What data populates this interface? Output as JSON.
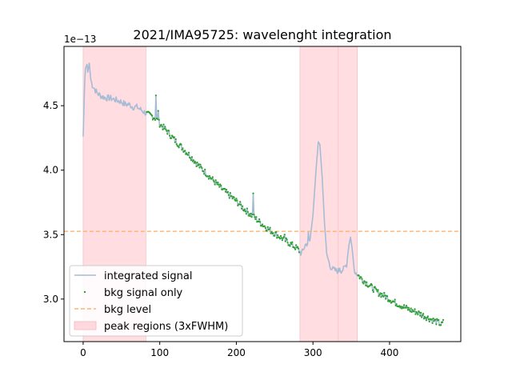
{
  "chart_data": {
    "type": "line",
    "title": "2021/IMA95725: wavelenght integration",
    "xlabel": "",
    "ylabel": "",
    "y_offset_label": "1e−13",
    "xlim": [
      -25,
      493
    ],
    "ylim": [
      2.67,
      4.96
    ],
    "y_scale_note": "y values are in units of 1e-13",
    "x_ticks": [
      0,
      100,
      200,
      300,
      400
    ],
    "x_tick_labels": [
      "0",
      "100",
      "200",
      "300",
      "400"
    ],
    "y_ticks": [
      3.0,
      3.5,
      4.0,
      4.5
    ],
    "y_tick_labels": [
      "3.0",
      "3.5",
      "4.0",
      "4.5"
    ],
    "grid": false,
    "legend_position": "lower-left",
    "legend": [
      {
        "label": "integrated signal",
        "kind": "line"
      },
      {
        "label": "bkg signal only",
        "kind": "marker"
      },
      {
        "label": "bkg level",
        "kind": "dashed-line"
      },
      {
        "label": "peak regions (3xFWHM)",
        "kind": "patch"
      }
    ],
    "colors": {
      "signal": "#a6bcd6",
      "bkg_points": "#2ca02c",
      "bkg_level": "#ffb26e",
      "peak_fill": "#ffd9dd",
      "peak_edge": "#f4b8be"
    },
    "bkg_level": 3.525,
    "peak_regions": [
      [
        0,
        82
      ],
      [
        283,
        333
      ],
      [
        333,
        358
      ]
    ],
    "signal_anchors": [
      [
        0,
        4.26
      ],
      [
        2,
        4.68
      ],
      [
        3,
        4.79
      ],
      [
        5,
        4.82
      ],
      [
        6,
        4.76
      ],
      [
        8,
        4.83
      ],
      [
        10,
        4.7
      ],
      [
        12,
        4.66
      ],
      [
        14,
        4.64
      ],
      [
        16,
        4.62
      ],
      [
        18,
        4.6
      ],
      [
        20,
        4.59
      ],
      [
        25,
        4.57
      ],
      [
        30,
        4.56
      ],
      [
        35,
        4.56
      ],
      [
        40,
        4.55
      ],
      [
        45,
        4.54
      ],
      [
        50,
        4.53
      ],
      [
        55,
        4.51
      ],
      [
        60,
        4.51
      ],
      [
        65,
        4.49
      ],
      [
        70,
        4.49
      ],
      [
        75,
        4.47
      ],
      [
        80,
        4.45
      ],
      [
        85,
        4.43
      ],
      [
        90,
        4.42
      ],
      [
        95,
        4.4
      ],
      [
        100,
        4.36
      ],
      [
        110,
        4.3
      ],
      [
        120,
        4.23
      ],
      [
        130,
        4.17
      ],
      [
        140,
        4.11
      ],
      [
        150,
        4.04
      ],
      [
        160,
        3.98
      ],
      [
        170,
        3.92
      ],
      [
        180,
        3.86
      ],
      [
        190,
        3.81
      ],
      [
        200,
        3.76
      ],
      [
        210,
        3.7
      ],
      [
        220,
        3.65
      ],
      [
        230,
        3.6
      ],
      [
        240,
        3.55
      ],
      [
        250,
        3.51
      ],
      [
        260,
        3.47
      ],
      [
        270,
        3.43
      ],
      [
        280,
        3.39
      ],
      [
        285,
        3.35
      ],
      [
        290,
        3.42
      ],
      [
        296,
        3.45
      ],
      [
        300,
        3.65
      ],
      [
        304,
        4.0
      ],
      [
        307,
        4.22
      ],
      [
        309,
        4.2
      ],
      [
        312,
        3.95
      ],
      [
        315,
        3.6
      ],
      [
        318,
        3.35
      ],
      [
        322,
        3.26
      ],
      [
        326,
        3.23
      ],
      [
        330,
        3.22
      ],
      [
        335,
        3.22
      ],
      [
        340,
        3.23
      ],
      [
        344,
        3.27
      ],
      [
        347,
        3.42
      ],
      [
        349,
        3.48
      ],
      [
        351,
        3.4
      ],
      [
        354,
        3.22
      ],
      [
        358,
        3.19
      ],
      [
        365,
        3.15
      ],
      [
        375,
        3.1
      ],
      [
        385,
        3.05
      ],
      [
        395,
        3.02
      ],
      [
        405,
        2.98
      ],
      [
        415,
        2.95
      ],
      [
        425,
        2.92
      ],
      [
        435,
        2.9
      ],
      [
        445,
        2.87
      ],
      [
        455,
        2.84
      ],
      [
        463,
        2.82
      ],
      [
        468,
        2.8
      ],
      [
        470,
        2.82
      ]
    ],
    "signal_spikes": [
      [
        95,
        4.58
      ],
      [
        98,
        4.46
      ],
      [
        222,
        3.82
      ],
      [
        263,
        3.5
      ],
      [
        294,
        3.52
      ],
      [
        335,
        3.24
      ]
    ]
  }
}
